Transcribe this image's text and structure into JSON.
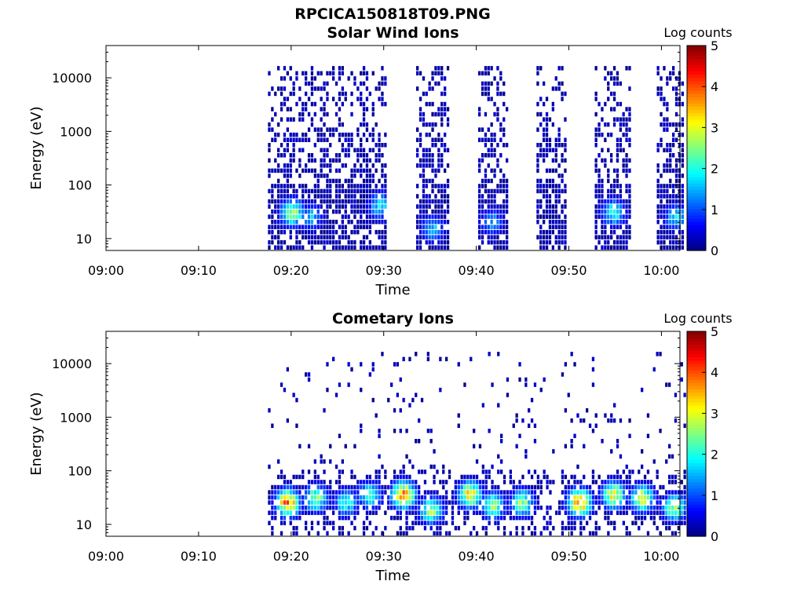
{
  "figure": {
    "title": "RPCICA150818T09.PNG"
  },
  "chart_data": [
    {
      "type": "heatmap",
      "title": "Solar Wind Ions",
      "xlabel": "Time",
      "ylabel": "Energy (eV)",
      "x_ticks": [
        "09:00",
        "09:10",
        "09:20",
        "09:30",
        "09:40",
        "09:50",
        "10:00"
      ],
      "y_ticks": [
        "10",
        "100",
        "1000",
        "10000"
      ],
      "y_scale": "log",
      "ylim": [
        6,
        40000
      ],
      "xlim": [
        "09:00",
        "10:02"
      ],
      "colorbar": {
        "label": "Log counts",
        "ticks": [
          "0",
          "1",
          "2",
          "3",
          "4",
          "5"
        ],
        "range": [
          0,
          5
        ],
        "colormap": "jet"
      },
      "data_intervals_minutes": [
        [
          17.5,
          30.2
        ],
        [
          33.5,
          36.8
        ],
        [
          40.2,
          43.2
        ],
        [
          46.5,
          49.5
        ],
        [
          52.8,
          56.5
        ],
        [
          59.5,
          62.4
        ]
      ],
      "low_energy_peaks": [
        {
          "t_min": 20.0,
          "energy_eV": 30,
          "log_counts": 2.6
        },
        {
          "t_min": 22.0,
          "energy_eV": 25,
          "log_counts": 1.5
        },
        {
          "t_min": 29.5,
          "energy_eV": 40,
          "log_counts": 1.8
        },
        {
          "t_min": 35.2,
          "energy_eV": 15,
          "log_counts": 1.6
        },
        {
          "t_min": 41.5,
          "energy_eV": 20,
          "log_counts": 1.4
        },
        {
          "t_min": 54.7,
          "energy_eV": 30,
          "log_counts": 2.0
        },
        {
          "t_min": 61.5,
          "energy_eV": 25,
          "log_counts": 1.8
        }
      ],
      "background_level": 0.5
    },
    {
      "type": "heatmap",
      "title": "Cometary Ions",
      "xlabel": "Time",
      "ylabel": "Energy (eV)",
      "x_ticks": [
        "09:00",
        "09:10",
        "09:20",
        "09:30",
        "09:40",
        "09:50",
        "10:00"
      ],
      "y_ticks": [
        "10",
        "100",
        "1000",
        "10000"
      ],
      "y_scale": "log",
      "ylim": [
        6,
        40000
      ],
      "xlim": [
        "09:00",
        "10:02"
      ],
      "colorbar": {
        "label": "Log counts",
        "ticks": [
          "0",
          "1",
          "2",
          "3",
          "4",
          "5"
        ],
        "range": [
          0,
          5
        ],
        "colormap": "jet"
      },
      "data_intervals_minutes": [
        [
          17.5,
          62.4
        ]
      ],
      "low_energy_peaks": [
        {
          "t_min": 19.5,
          "energy_eV": 25,
          "log_counts": 3.8
        },
        {
          "t_min": 22.5,
          "energy_eV": 30,
          "log_counts": 2.6
        },
        {
          "t_min": 25.8,
          "energy_eV": 25,
          "log_counts": 2.0
        },
        {
          "t_min": 28.3,
          "energy_eV": 35,
          "log_counts": 2.2
        },
        {
          "t_min": 32.0,
          "energy_eV": 35,
          "log_counts": 3.8
        },
        {
          "t_min": 35.0,
          "energy_eV": 18,
          "log_counts": 2.6
        },
        {
          "t_min": 39.2,
          "energy_eV": 35,
          "log_counts": 3.2
        },
        {
          "t_min": 41.7,
          "energy_eV": 22,
          "log_counts": 2.4
        },
        {
          "t_min": 44.8,
          "energy_eV": 25,
          "log_counts": 2.6
        },
        {
          "t_min": 51.0,
          "energy_eV": 25,
          "log_counts": 3.8
        },
        {
          "t_min": 54.7,
          "energy_eV": 35,
          "log_counts": 3.0
        },
        {
          "t_min": 57.8,
          "energy_eV": 30,
          "log_counts": 3.0
        },
        {
          "t_min": 61.3,
          "energy_eV": 20,
          "log_counts": 2.6
        }
      ],
      "background_level": 0.08
    }
  ]
}
